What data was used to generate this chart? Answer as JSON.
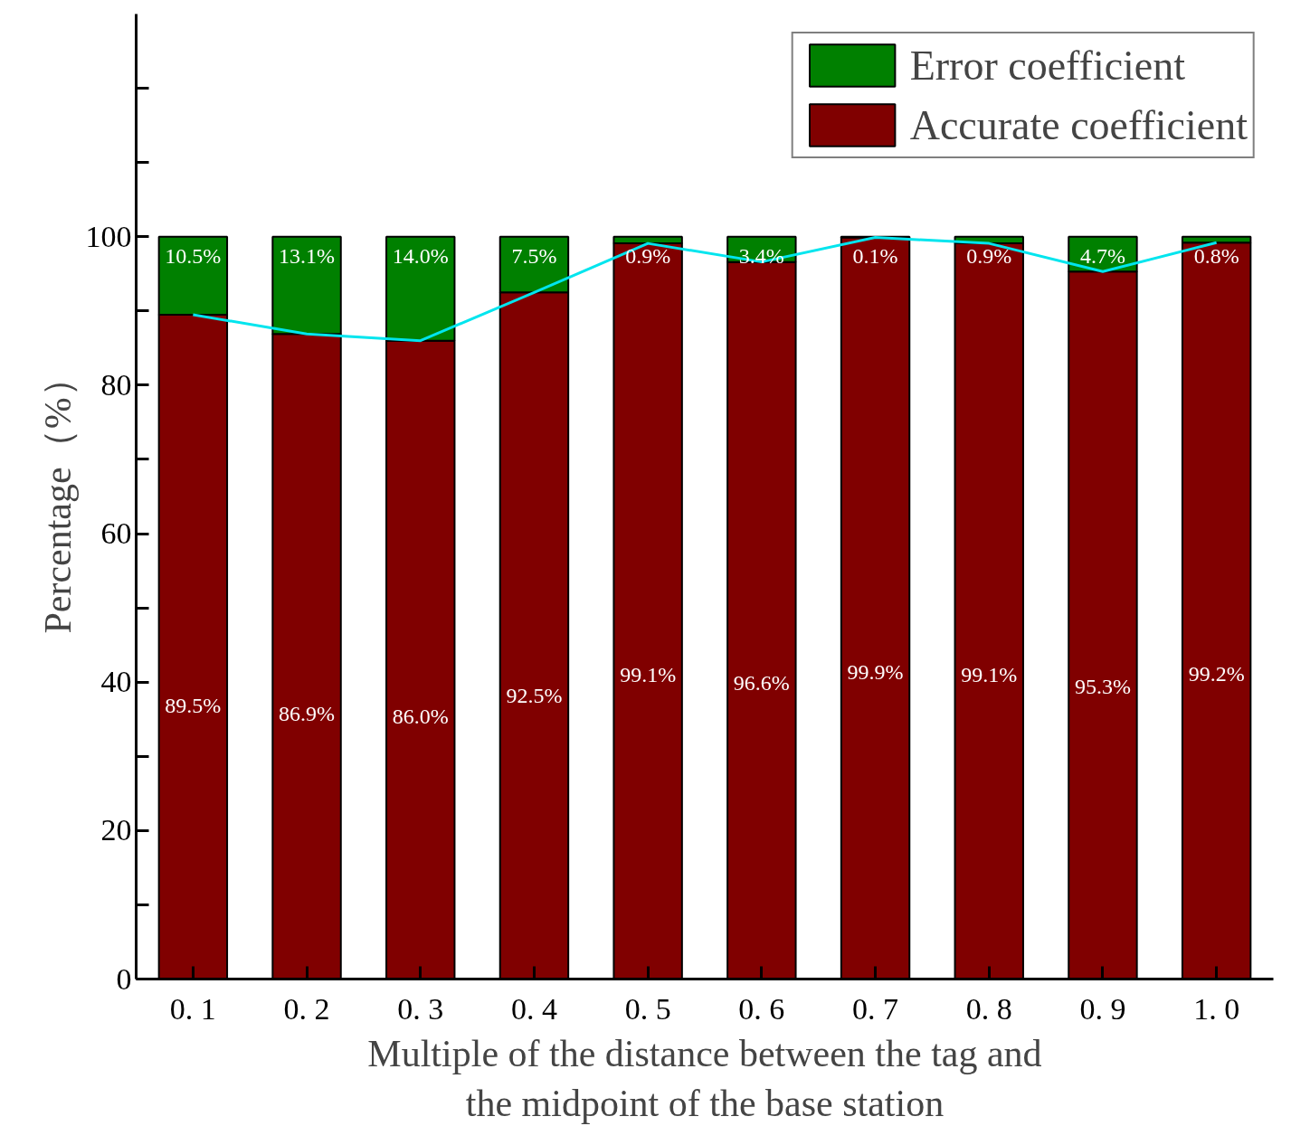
{
  "chart_data": {
    "type": "bar",
    "stacked": true,
    "xlabel": "Multiple of the distance between the tag and\nthe midpoint of the base station",
    "ylabel": "Percentage（%）",
    "categories": [
      "0. 1",
      "0. 2",
      "0. 3",
      "0. 4",
      "0. 5",
      "0. 6",
      "0. 7",
      "0. 8",
      "0. 9",
      "1. 0"
    ],
    "series": [
      {
        "name": "Accurate coefficient",
        "color": "#800000",
        "values": [
          89.5,
          86.9,
          86.0,
          92.5,
          99.1,
          96.6,
          99.9,
          99.1,
          95.3,
          99.2
        ],
        "value_labels": [
          "89.5%",
          "86.9%",
          "86.0%",
          "92.5%",
          "99.1%",
          "96.6%",
          "99.9%",
          "99.1%",
          "95.3%",
          "99.2%"
        ]
      },
      {
        "name": "Error coefficient",
        "color": "#008000",
        "values": [
          10.5,
          13.1,
          14.0,
          7.5,
          0.9,
          3.4,
          0.1,
          0.9,
          4.7,
          0.8
        ],
        "value_labels": [
          "10.5%",
          "13.1%",
          "14.0%",
          "7.5%",
          "0.9%",
          "3.4%",
          "0.1%",
          "0.9%",
          "4.7%",
          "0.8%"
        ]
      },
      {
        "type": "line",
        "color": "#00e5ee",
        "values": [
          89.5,
          86.9,
          86.0,
          92.5,
          99.1,
          96.6,
          99.9,
          99.1,
          95.3,
          99.2
        ]
      }
    ],
    "ylim": [
      0,
      130
    ],
    "yticks": [
      0,
      {
        "value": 10,
        "label": null
      },
      20,
      {
        "value": 30,
        "label": null
      },
      40,
      {
        "value": 50,
        "label": null
      },
      60,
      {
        "value": 70,
        "label": null
      },
      80,
      {
        "value": 90,
        "label": null
      },
      100,
      {
        "value": 110,
        "label": null
      },
      {
        "value": 120,
        "label": null
      }
    ],
    "legend": "top right",
    "grid": false
  }
}
